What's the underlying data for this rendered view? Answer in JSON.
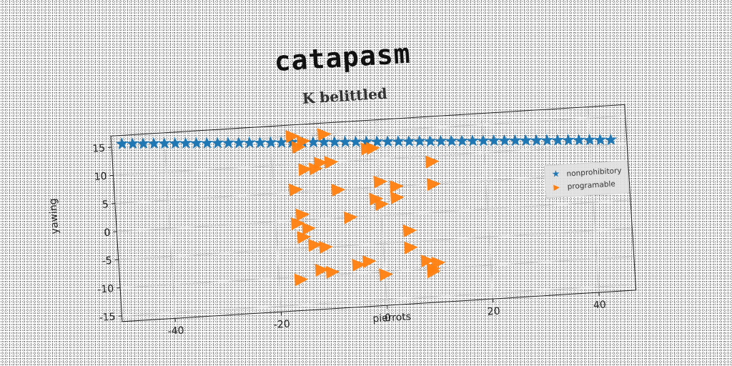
{
  "chart_data": {
    "type": "scatter",
    "title": "catapasm",
    "subtitle": "K belittled",
    "xlabel": "pierrots",
    "ylabel": "yawing",
    "xlim": [
      -50,
      47
    ],
    "ylim": [
      -16,
      17
    ],
    "xticks": [
      -40,
      -20,
      0,
      20,
      40
    ],
    "yticks": [
      -15,
      -10,
      -5,
      0,
      5,
      10,
      15
    ],
    "grid": true,
    "legend_position": "right",
    "series": [
      {
        "name": "nonprohibitory",
        "marker": "star",
        "color": "#1f77b4",
        "x": [
          -48,
          -46,
          -44,
          -42,
          -40,
          -38,
          -36,
          -34,
          -32,
          -30,
          -28,
          -26,
          -24,
          -22,
          -20,
          -18,
          -16,
          -14,
          -12,
          -10,
          -8,
          -6,
          -4,
          -2,
          0,
          2,
          4,
          6,
          8,
          10,
          12,
          14,
          16,
          18,
          20,
          22,
          24,
          26,
          28,
          30,
          32,
          34,
          36,
          38,
          40,
          42,
          44
        ],
        "y": [
          15.5,
          15.4,
          15.3,
          15.2,
          15.1,
          15.0,
          14.9,
          14.8,
          14.7,
          14.6,
          14.5,
          14.4,
          14.3,
          14.2,
          14.1,
          14.0,
          13.9,
          13.8,
          13.7,
          13.6,
          13.5,
          13.4,
          13.3,
          13.2,
          13.1,
          13.0,
          12.9,
          12.8,
          12.7,
          12.6,
          12.5,
          12.4,
          12.3,
          12.2,
          12.1,
          12.0,
          11.9,
          11.8,
          11.7,
          11.6,
          11.5,
          11.4,
          11.3,
          11.2,
          11.1,
          11.0,
          10.9
        ]
      },
      {
        "name": "programable",
        "marker": "triangle-right",
        "color": "#ff7f0e",
        "x": [
          -16,
          -14,
          -10,
          -2,
          -1,
          10,
          -15,
          -14,
          -12,
          -11,
          -9,
          -16,
          -8,
          0,
          3,
          10,
          -1,
          3,
          0,
          -15,
          -16,
          -14,
          -6,
          -15,
          5,
          -13,
          -11,
          5,
          -3,
          -5,
          8,
          10,
          -12,
          -10,
          9,
          -16,
          0,
          9
        ],
        "y": [
          15,
          14,
          15,
          12,
          12,
          9,
          13,
          9,
          9,
          10,
          10,
          5.5,
          5,
          6,
          5,
          5,
          3,
          3,
          2,
          1,
          -0.5,
          -1.5,
          0,
          -3,
          -3,
          -4.5,
          -5,
          -6,
          -8,
          -8.5,
          -8.5,
          -9,
          -9,
          -9.5,
          -10,
          -10.5,
          -10.5,
          -10.5
        ]
      }
    ]
  }
}
